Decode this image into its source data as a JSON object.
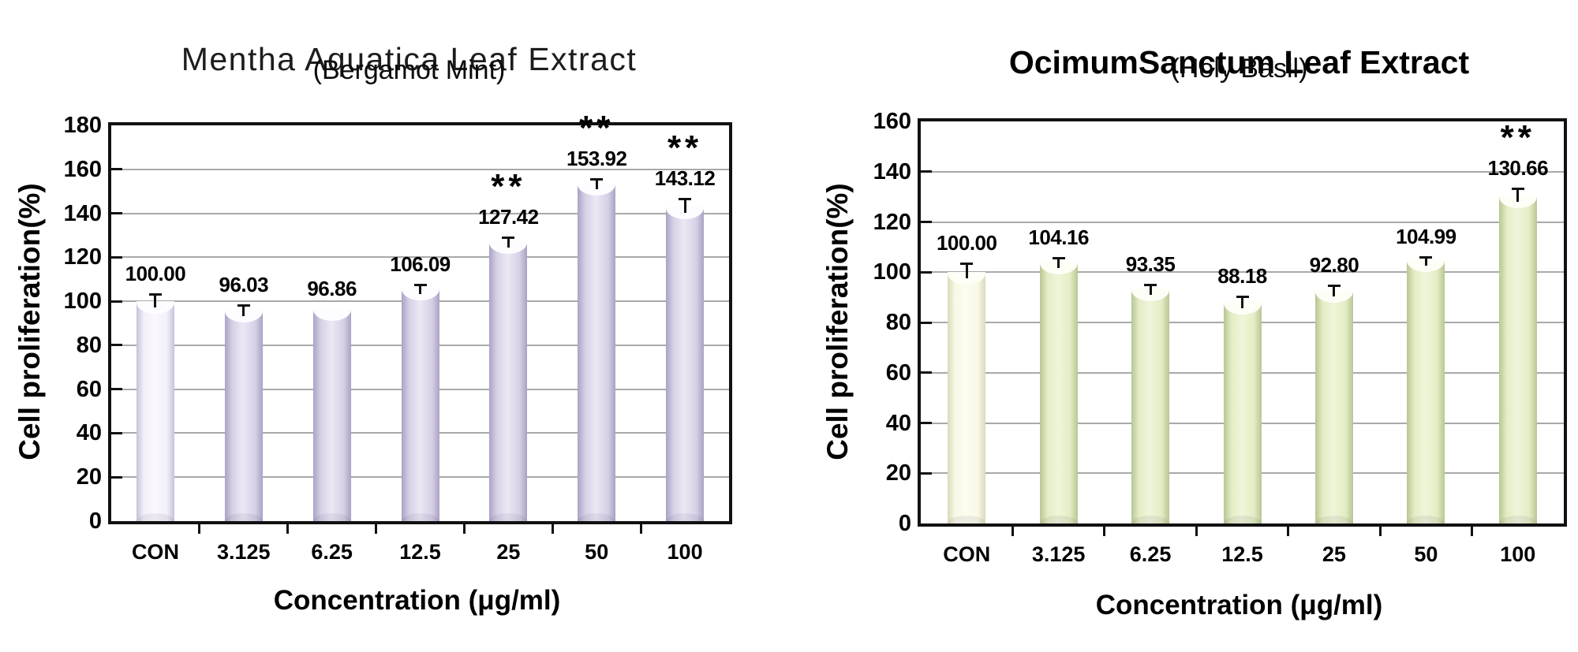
{
  "figure": {
    "description": "Two bar charts of cell proliferation versus extract concentration"
  },
  "chart_data": [
    {
      "type": "bar",
      "title": "Mentha Aquatica Leaf Extract",
      "subtitle": "(Bergamot Mint)",
      "ylabel": "Cell proliferation(%)",
      "xlabel": "Concentration (μg/ml)",
      "categories": [
        "CON",
        "3.125",
        "6.25",
        "12.5",
        "25",
        "50",
        "100"
      ],
      "values": [
        100.0,
        96.03,
        96.86,
        106.09,
        127.42,
        153.92,
        143.12
      ],
      "value_labels": [
        "100.00",
        "96.03",
        "96.86",
        "106.09",
        "127.42",
        "153.92",
        "143.12"
      ],
      "errors": [
        3.5,
        2.5,
        0,
        1.8,
        2.0,
        2.0,
        4.0
      ],
      "significance": [
        "",
        "",
        "",
        "",
        "**",
        "**",
        "**"
      ],
      "ylim": [
        0,
        180
      ],
      "ytick_step": 20,
      "grid": true,
      "legend": "none",
      "colors": {
        "bar_fill": "#d7d0e6",
        "bar_light": "#ece8f5",
        "bar_edge": "#aaa2c4",
        "con_fill": "#f3f0fa",
        "con_light": "#faf8fd",
        "con_edge": "#c7c1d9",
        "cap": "#fdfcff",
        "grid_line": "#a9a9a9",
        "frame": "#111111"
      }
    },
    {
      "type": "bar",
      "title": "OcimumSanctum Leaf Extract",
      "subtitle": "(Holy Basil)",
      "ylabel": "Cell proliferation(%)",
      "xlabel": "Concentration (μg/ml)",
      "categories": [
        "CON",
        "3.125",
        "6.25",
        "12.5",
        "25",
        "50",
        "100"
      ],
      "values": [
        100.0,
        104.16,
        93.35,
        88.18,
        92.8,
        104.99,
        130.66
      ],
      "value_labels": [
        "100.00",
        "104.16",
        "93.35",
        "88.18",
        "92.80",
        "104.99",
        "130.66"
      ],
      "errors": [
        3.8,
        2.0,
        2.0,
        2.6,
        2.4,
        1.5,
        3.0
      ],
      "significance": [
        "",
        "",
        "",
        "",
        "",
        "",
        "**"
      ],
      "ylim": [
        0,
        160
      ],
      "ytick_step": 20,
      "grid": true,
      "legend": "none",
      "colors": {
        "bar_fill": "#e3edc5",
        "bar_light": "#eff5da",
        "bar_edge": "#b8c693",
        "con_fill": "#f9f9e6",
        "con_light": "#fcfcf0",
        "con_edge": "#d9d9bc",
        "cap": "#fdfef6",
        "grid_line": "#a9a9a9",
        "frame": "#111111"
      }
    }
  ]
}
